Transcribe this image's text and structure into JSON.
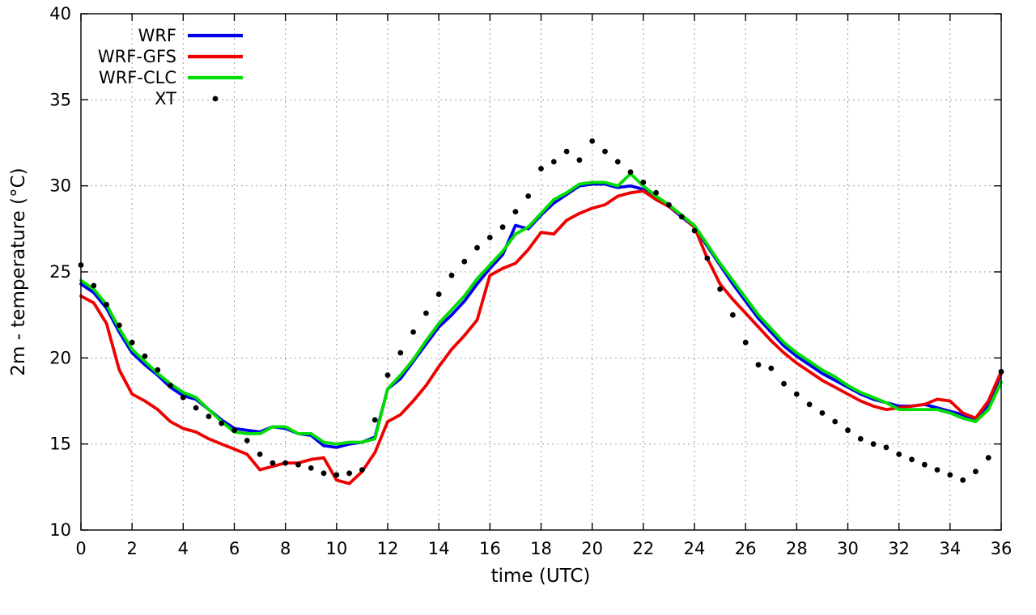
{
  "chart_data": {
    "type": "line",
    "title": "",
    "xlabel": "time (UTC)",
    "ylabel": "2m - temperature (°C)",
    "xlim": [
      0,
      36
    ],
    "ylim": [
      10,
      40
    ],
    "xticks": [
      0,
      2,
      4,
      6,
      8,
      10,
      12,
      14,
      16,
      18,
      20,
      22,
      24,
      26,
      28,
      30,
      32,
      34,
      36
    ],
    "yticks": [
      10,
      15,
      20,
      25,
      30,
      35,
      40
    ],
    "grid": true,
    "legend_position": "top-left",
    "x": [
      0,
      0.5,
      1,
      1.5,
      2,
      2.5,
      3,
      3.5,
      4,
      4.5,
      5,
      5.5,
      6,
      6.5,
      7,
      7.5,
      8,
      8.5,
      9,
      9.5,
      10,
      10.5,
      11,
      11.5,
      12,
      12.5,
      13,
      13.5,
      14,
      14.5,
      15,
      15.5,
      16,
      16.5,
      17,
      17.5,
      18,
      18.5,
      19,
      19.5,
      20,
      20.5,
      21,
      21.5,
      22,
      22.5,
      23,
      23.5,
      24,
      24.5,
      25,
      25.5,
      26,
      26.5,
      27,
      27.5,
      28,
      28.5,
      29,
      29.5,
      30,
      30.5,
      31,
      31.5,
      32,
      32.5,
      33,
      33.5,
      34,
      34.5,
      35,
      35.5,
      36
    ],
    "series": [
      {
        "name": "WRF",
        "style": "line",
        "color": "#0000ee",
        "line_width": 3.8,
        "values": [
          24.3,
          23.8,
          22.9,
          21.5,
          20.3,
          19.6,
          19.0,
          18.3,
          17.8,
          17.6,
          17.0,
          16.4,
          15.9,
          15.8,
          15.7,
          16.0,
          15.9,
          15.6,
          15.5,
          14.9,
          14.8,
          15.0,
          15.1,
          15.4,
          18.2,
          18.8,
          19.8,
          20.8,
          21.8,
          22.5,
          23.3,
          24.3,
          25.2,
          26.0,
          27.7,
          27.5,
          28.3,
          29.0,
          29.5,
          30.0,
          30.1,
          30.1,
          29.9,
          30.0,
          29.8,
          29.3,
          28.8,
          28.2,
          27.6,
          26.5,
          25.4,
          24.3,
          23.3,
          22.3,
          21.5,
          20.7,
          20.1,
          19.6,
          19.1,
          18.7,
          18.3,
          17.9,
          17.6,
          17.4,
          17.2,
          17.2,
          17.3,
          17.1,
          16.9,
          16.7,
          16.4,
          17.3,
          19.1
        ]
      },
      {
        "name": "WRF-GFS",
        "style": "line",
        "color": "#ee0000",
        "line_width": 3.8,
        "values": [
          23.6,
          23.2,
          22.0,
          19.3,
          17.9,
          17.5,
          17.0,
          16.3,
          15.9,
          15.7,
          15.3,
          15.0,
          14.7,
          14.4,
          13.5,
          13.7,
          13.9,
          13.9,
          14.1,
          14.2,
          12.9,
          12.7,
          13.4,
          14.5,
          16.3,
          16.7,
          17.5,
          18.4,
          19.5,
          20.5,
          21.3,
          22.2,
          24.8,
          25.2,
          25.5,
          26.3,
          27.3,
          27.2,
          28.0,
          28.4,
          28.7,
          28.9,
          29.4,
          29.6,
          29.7,
          29.2,
          28.8,
          28.3,
          27.6,
          25.8,
          24.3,
          23.4,
          22.6,
          21.8,
          21.0,
          20.3,
          19.7,
          19.2,
          18.7,
          18.3,
          17.9,
          17.5,
          17.2,
          17.0,
          17.1,
          17.2,
          17.3,
          17.6,
          17.5,
          16.8,
          16.5,
          17.5,
          19.2
        ]
      },
      {
        "name": "WRF-CLC",
        "style": "line",
        "color": "#00dd00",
        "line_width": 3.8,
        "values": [
          24.5,
          24.0,
          23.1,
          21.7,
          20.5,
          19.8,
          19.1,
          18.5,
          18.0,
          17.7,
          17.0,
          16.3,
          15.7,
          15.6,
          15.6,
          16.0,
          16.0,
          15.6,
          15.6,
          15.1,
          15.0,
          15.1,
          15.1,
          15.3,
          18.2,
          19.0,
          19.9,
          21.0,
          22.0,
          22.8,
          23.6,
          24.6,
          25.4,
          26.2,
          27.2,
          27.6,
          28.4,
          29.2,
          29.6,
          30.1,
          30.2,
          30.2,
          30.0,
          30.7,
          30.0,
          29.4,
          28.9,
          28.3,
          27.7,
          26.6,
          25.5,
          24.5,
          23.5,
          22.5,
          21.7,
          20.9,
          20.3,
          19.8,
          19.3,
          18.9,
          18.4,
          18.0,
          17.7,
          17.4,
          17.0,
          17.0,
          17.0,
          17.0,
          16.8,
          16.5,
          16.3,
          17.0,
          18.6
        ]
      },
      {
        "name": "XT",
        "style": "scatter",
        "color": "#000000",
        "marker_radius": 3.4,
        "values": [
          25.4,
          24.2,
          23.1,
          21.9,
          20.9,
          20.1,
          19.3,
          18.4,
          17.7,
          17.1,
          16.6,
          16.2,
          15.8,
          15.2,
          14.4,
          13.9,
          13.9,
          13.8,
          13.6,
          13.3,
          13.2,
          13.3,
          13.5,
          16.4,
          19.0,
          20.3,
          21.5,
          22.6,
          23.7,
          24.8,
          25.6,
          26.4,
          27.0,
          27.6,
          28.5,
          29.4,
          31.0,
          31.4,
          32.0,
          31.5,
          32.6,
          32.0,
          31.4,
          30.8,
          30.2,
          29.6,
          28.9,
          28.2,
          27.4,
          25.8,
          24.0,
          22.5,
          20.9,
          19.6,
          19.4,
          18.5,
          17.9,
          17.3,
          16.8,
          16.3,
          15.8,
          15.3,
          15.0,
          14.8,
          14.4,
          14.1,
          13.8,
          13.5,
          13.2,
          12.9,
          13.4,
          14.2,
          19.2
        ]
      }
    ],
    "colors": {
      "grid": "#9c9c9c",
      "border": "#000000",
      "text": "#000000",
      "background": "#ffffff"
    }
  }
}
